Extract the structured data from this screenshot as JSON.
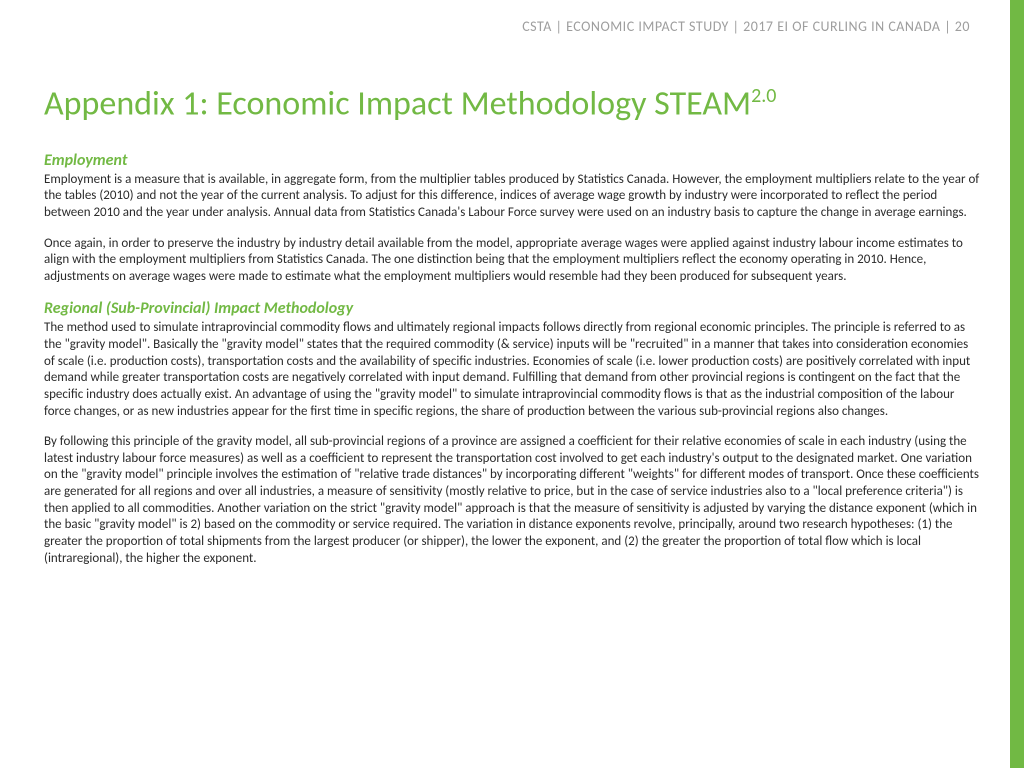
{
  "colors": {
    "accent": "#72b944",
    "side_bar": "#71b944",
    "header_text": "#9e9e9e",
    "body_text": "#2b2b2b",
    "background": "#ffffff"
  },
  "header": {
    "text": "CSTA | ECONOMIC IMPACT STUDY | 2017 EI OF CURLING IN CANADA | 20"
  },
  "title": {
    "main": "Appendix 1: Economic Impact Methodology STEAM",
    "sup": "2.0"
  },
  "sections": [
    {
      "heading": "Employment",
      "paragraphs": [
        "Employment is a measure that is available, in aggregate form, from the multiplier tables produced by Statistics Canada. However, the employment multipliers relate to the year of the tables (2010) and not the year of the current analysis. To adjust for this difference, indices of average wage growth by industry were incorporated to reflect the period between 2010 and the year under analysis. Annual data from Statistics Canada's Labour Force survey were used on an industry basis to capture the change in average earnings.",
        "Once again, in order to preserve the industry by industry detail available from the model, appropriate average wages were applied against industry labour income estimates to align with the employment multipliers from Statistics Canada. The one distinction being that the employment multipliers reflect the economy operating in 2010. Hence, adjustments on average wages were made to estimate what the employment multipliers would resemble had they been produced for subsequent years."
      ]
    },
    {
      "heading": "Regional (Sub-Provincial) Impact Methodology",
      "paragraphs": [
        "The method used to simulate intraprovincial commodity flows and ultimately regional impacts follows directly from regional economic principles. The principle is referred to as the \"gravity model\".  Basically the \"gravity model\" states that the required commodity (& service) inputs will be \"recruited\" in a manner that takes into consideration economies of scale (i.e. production costs), transportation costs and the availability of specific industries. Economies of scale (i.e. lower production costs) are positively correlated with input demand while greater transportation costs are negatively correlated with input demand. Fulfilling that demand from other provincial regions is contingent on the fact that the specific industry does actually exist. An advantage of using the \"gravity model\" to simulate intraprovincial commodity flows is that as the industrial composition of the labour force changes, or as new industries appear for the first time in specific regions, the share of production between the various sub-provincial regions also changes.",
        "By following this principle of the gravity model, all sub-provincial regions of a province are assigned a coefficient for their relative economies of scale in each industry (using the latest industry labour force measures) as well as a coefficient to represent the transportation cost involved to get each industry's output to the designated market. One variation on the \"gravity model\" principle involves the estimation of \"relative trade distances\" by incorporating different \"weights\" for different modes of transport. Once these coefficients are generated for all regions and over all industries, a measure of sensitivity (mostly relative to price, but in the case of service industries also to a \"local preference criteria\") is then applied to all commodities. Another variation on the strict \"gravity model\" approach is that the measure of sensitivity is adjusted by varying the distance exponent (which in the basic \"gravity model\" is 2) based on the commodity or service required. The variation in distance exponents revolve, principally, around two research hypotheses: (1) the greater the proportion of total shipments from the largest producer (or shipper), the lower the exponent, and (2) the greater the proportion of total flow which is local (intraregional), the higher the exponent."
      ]
    }
  ]
}
